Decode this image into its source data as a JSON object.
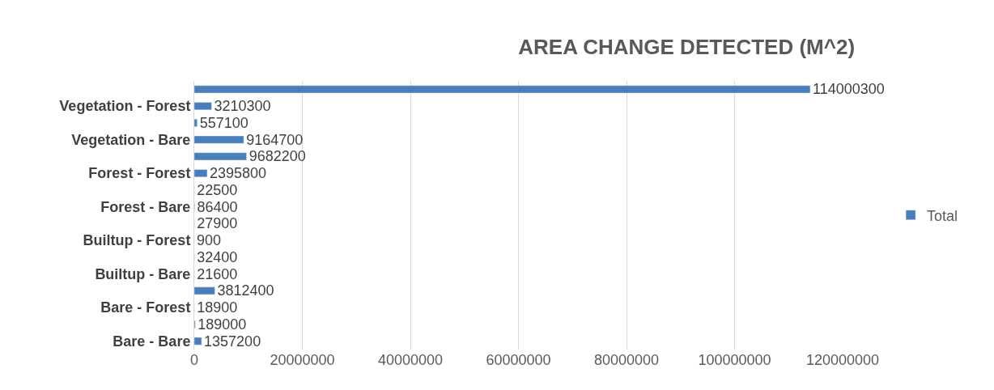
{
  "chart_data": {
    "type": "bar",
    "orientation": "horizontal",
    "title": "AREA CHANGE DETECTED (M^2)",
    "categories": [
      null,
      "Vegetation - Forest",
      null,
      "Vegetation - Bare",
      null,
      "Forest - Forest",
      null,
      "Forest - Bare",
      null,
      "Builtup - Forest",
      null,
      "Builtup - Bare",
      null,
      "Bare - Forest",
      null,
      "Bare - Bare"
    ],
    "series": [
      {
        "name": "Total",
        "color": "#4a7ebb",
        "values": [
          114000300,
          3210300,
          557100,
          9164700,
          9682200,
          2395800,
          22500,
          86400,
          27900,
          900,
          32400,
          21600,
          3812400,
          18900,
          189000,
          1357200
        ]
      }
    ],
    "xlim": [
      0,
      120000000
    ],
    "xticks": [
      0,
      20000000,
      40000000,
      60000000,
      80000000,
      100000000,
      120000000
    ],
    "grid": "x",
    "legend": "right",
    "data_labels": true
  }
}
